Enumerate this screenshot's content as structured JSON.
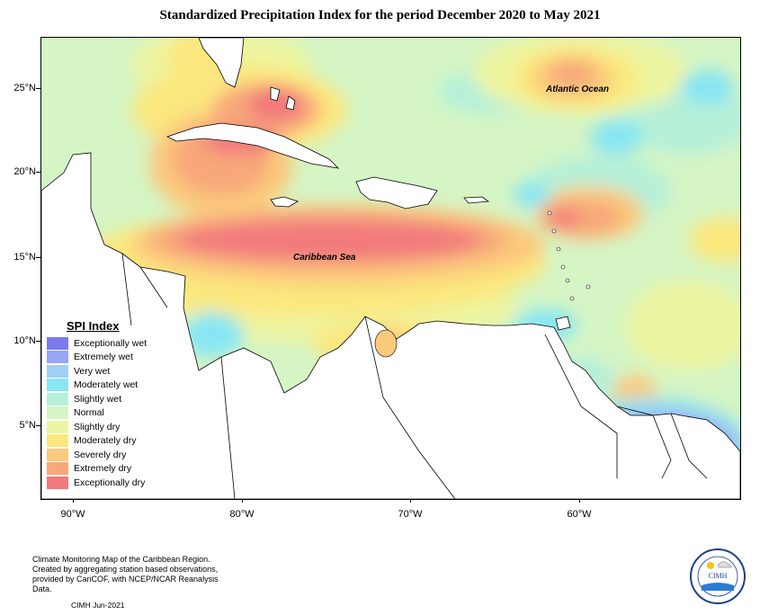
{
  "title": "Standardized Precipitation Index for the period December 2020 to May 2021",
  "map": {
    "y_ticks": [
      "25°N",
      "20°N",
      "15°N",
      "10°N",
      "5°N"
    ],
    "x_ticks": [
      "90°W",
      "80°W",
      "70°W",
      "60°W"
    ],
    "labels": {
      "atlantic": "Atlantic Ocean",
      "caribbean": "Caribbean Sea"
    }
  },
  "legend": {
    "title": "SPI Index",
    "items": [
      {
        "label": "Exceptionally wet",
        "color": "#7b7bf0"
      },
      {
        "label": "Extremely wet",
        "color": "#96a6f4"
      },
      {
        "label": "Very wet",
        "color": "#9fd0f6"
      },
      {
        "label": "Moderately wet",
        "color": "#87e6f3"
      },
      {
        "label": "Slightly wet",
        "color": "#b6f0d8"
      },
      {
        "label": "Normal",
        "color": "#d5f5c4"
      },
      {
        "label": "Slightly dry",
        "color": "#eef5a0"
      },
      {
        "label": "Moderately dry",
        "color": "#fbe77e"
      },
      {
        "label": "Severely dry",
        "color": "#fbc97c"
      },
      {
        "label": "Extremely dry",
        "color": "#f8a77a"
      },
      {
        "label": "Exceptionally dry",
        "color": "#f27a7c"
      }
    ]
  },
  "footer": {
    "line1": "Climate Monitoring Map of the Caribbean Region.",
    "line2": "Created by aggregating station based observations,",
    "line3": "provided by CariCOF, with NCEP/NCAR Reanalysis Data.",
    "code": "CIMH Jun-2021"
  },
  "logo": {
    "text": "CIMH"
  }
}
